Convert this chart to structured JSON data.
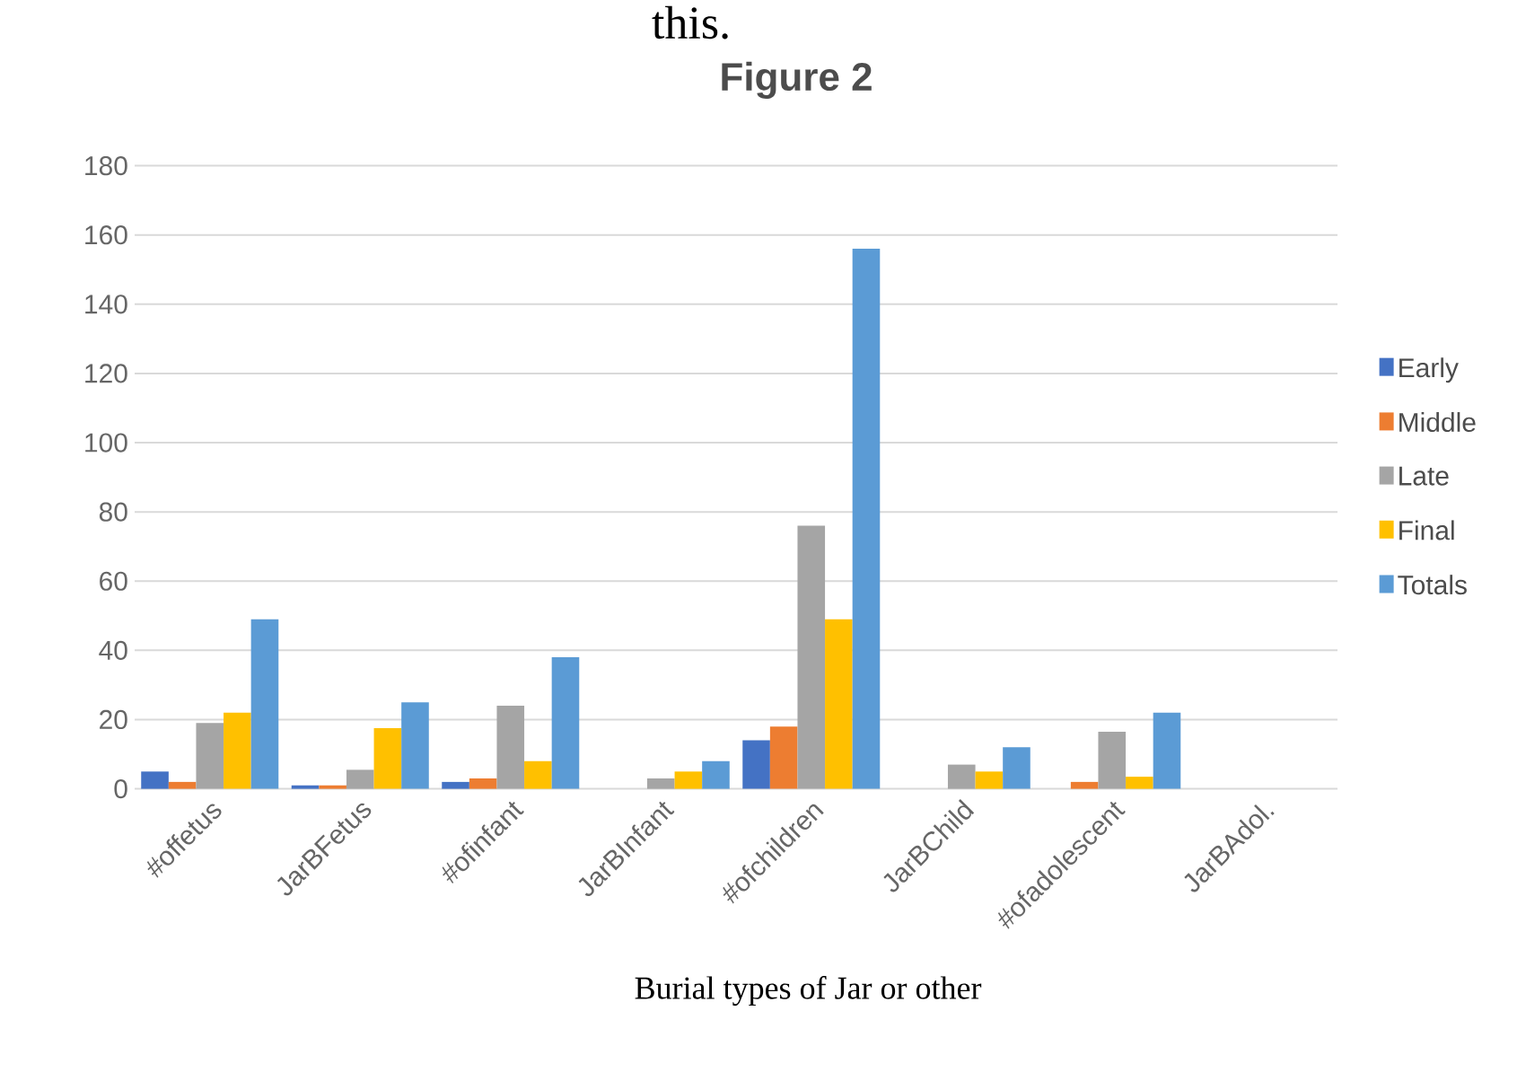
{
  "chart_data": {
    "type": "bar",
    "title": "Figure 2",
    "annotations": [
      "this.",
      "Burial types of Jar or other"
    ],
    "categories": [
      "#offetus",
      "JarBFetus",
      "#ofinfant",
      "JarBInfant",
      "#ofchildren",
      "JarBChild",
      "#ofadolescent",
      "JarBAdol."
    ],
    "series": [
      {
        "name": "Early",
        "color": "#4472c4",
        "values": [
          5,
          1,
          2,
          0,
          14,
          0,
          0,
          0
        ]
      },
      {
        "name": "Middle",
        "color": "#ed7d31",
        "values": [
          2,
          1,
          3,
          0,
          18,
          0,
          2,
          0
        ]
      },
      {
        "name": "Late",
        "color": "#a5a5a5",
        "values": [
          19,
          5.5,
          24,
          3,
          76,
          7,
          16.5,
          0
        ]
      },
      {
        "name": "Final",
        "color": "#ffc000",
        "values": [
          22,
          17.5,
          8,
          5,
          49,
          5,
          3.5,
          0
        ]
      },
      {
        "name": "Totals",
        "color": "#5b9bd5",
        "values": [
          49,
          25,
          38,
          8,
          156,
          12,
          22,
          0
        ]
      }
    ],
    "ylim": [
      0,
      180
    ],
    "yticks": [
      0,
      20,
      40,
      60,
      80,
      100,
      120,
      140,
      160,
      180
    ],
    "grid": "y",
    "legend": "right"
  }
}
